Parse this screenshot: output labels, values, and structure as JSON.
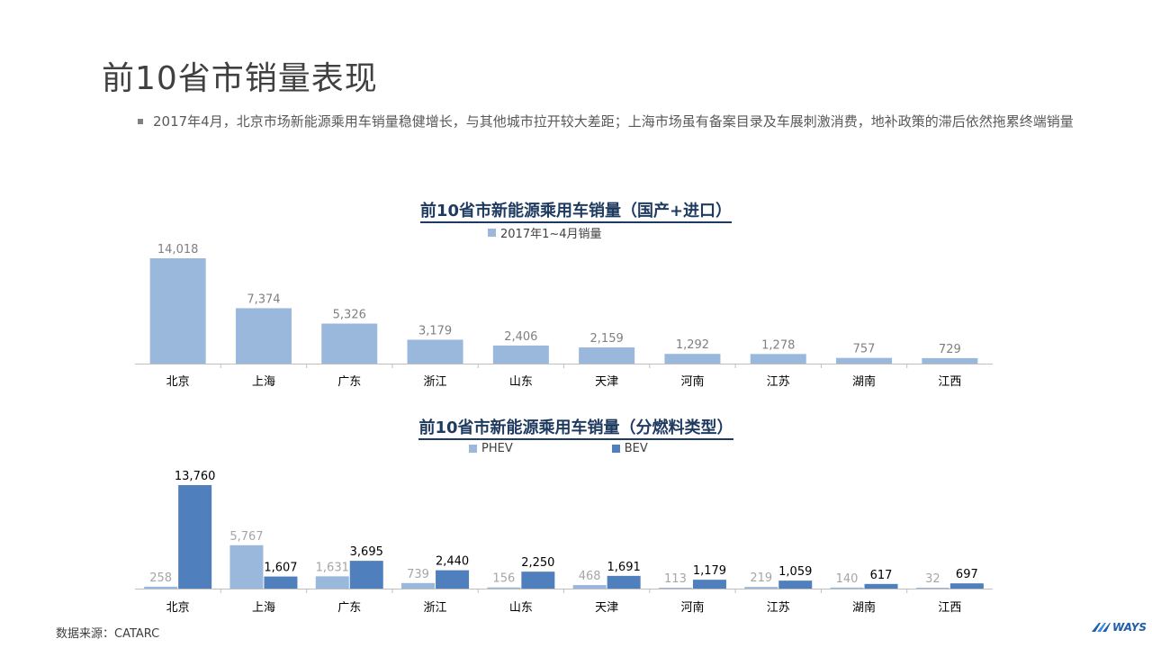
{
  "page": {
    "title": "前10省市销量表现",
    "bullet": "2017年4月，北京市场新能源乘用车销量稳健增长，与其他城市拉开较大差距；上海市场虽有备案目录及车展刺激消费，地补政策的滞后依然拖累终端销量",
    "source": "数据来源：CATARC",
    "logo_text": "WAYS"
  },
  "colors": {
    "light_blue": "#9ab7dc",
    "dark_blue": "#4f80bd",
    "title_navy": "#1f3a5f"
  },
  "chart_data": [
    {
      "type": "bar",
      "title": "前10省市新能源乘用车销量（国产+进口）",
      "categories": [
        "北京",
        "上海",
        "广东",
        "浙江",
        "山东",
        "天津",
        "河南",
        "江苏",
        "湖南",
        "江西"
      ],
      "series": [
        {
          "name": "2017年1~4月销量",
          "values": [
            14018,
            7374,
            5326,
            3179,
            2406,
            2159,
            1292,
            1278,
            757,
            729
          ],
          "labels": [
            "14,018",
            "7,374",
            "5,326",
            "3,179",
            "2,406",
            "2,159",
            "1,292",
            "1,278",
            "757",
            "729"
          ]
        }
      ],
      "ylim": [
        0,
        14018
      ],
      "legend": "top-center",
      "grid": false
    },
    {
      "type": "bar",
      "title": "前10省市新能源乘用车销量（分燃料类型）",
      "categories": [
        "北京",
        "上海",
        "广东",
        "浙江",
        "山东",
        "天津",
        "河南",
        "江苏",
        "湖南",
        "江西"
      ],
      "series": [
        {
          "name": "PHEV",
          "values": [
            258,
            5767,
            1631,
            739,
            156,
            468,
            113,
            219,
            140,
            32
          ],
          "labels": [
            "258",
            "5,767",
            "1,631",
            "739",
            "156",
            "468",
            "113",
            "219",
            "140",
            "32"
          ]
        },
        {
          "name": "BEV",
          "values": [
            13760,
            1607,
            3695,
            2440,
            2250,
            1691,
            1179,
            1059,
            617,
            697
          ],
          "labels": [
            "13,760",
            "1,607",
            "3,695",
            "2,440",
            "2,250",
            "1,691",
            "1,179",
            "1,059",
            "617",
            "697"
          ]
        }
      ],
      "ylim": [
        0,
        13760
      ],
      "legend": "top-center",
      "grid": false
    }
  ]
}
